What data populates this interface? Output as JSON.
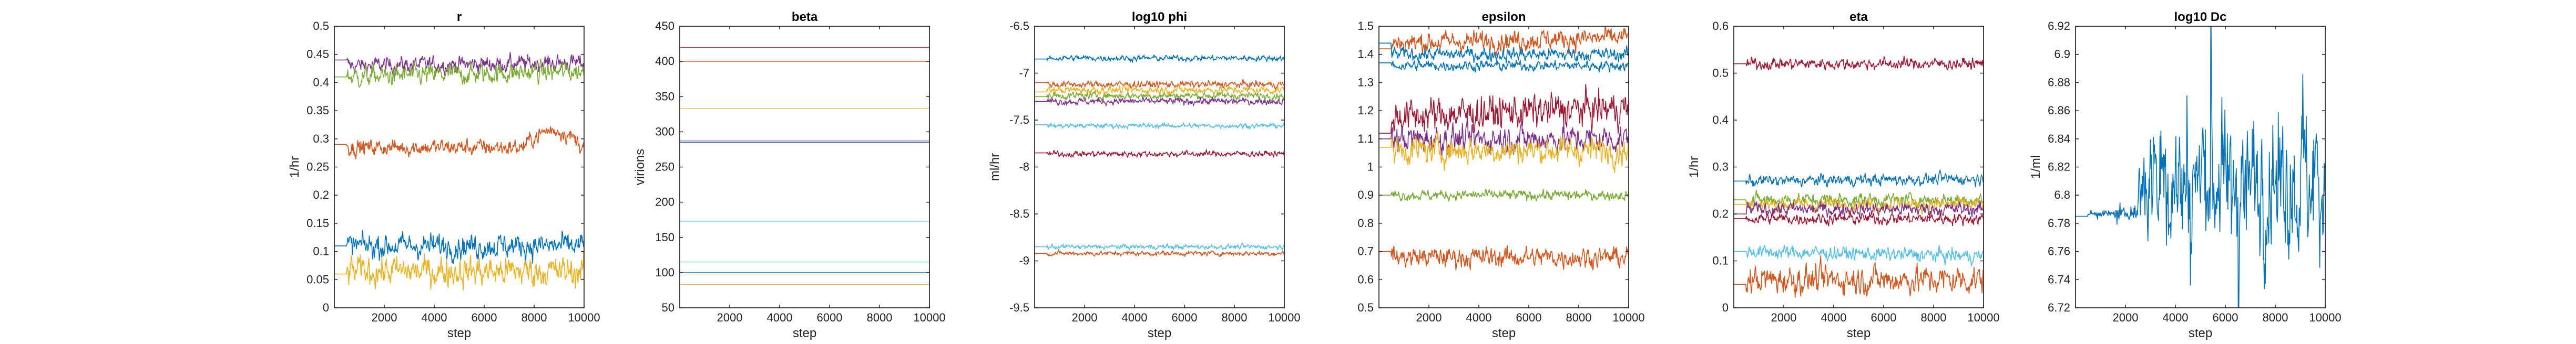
{
  "figure": {
    "background": "#ffffff"
  },
  "chart_data": [
    {
      "type": "line",
      "title": "r",
      "xlabel": "step",
      "ylabel": "1/hr",
      "xlim": [
        0,
        10000
      ],
      "ylim": [
        0,
        0.5
      ],
      "xticks": [
        2000,
        4000,
        6000,
        8000,
        10000
      ],
      "yticks": [
        0,
        0.05,
        0.1,
        0.15,
        0.2,
        0.25,
        0.3,
        0.35,
        0.4,
        0.45,
        0.5
      ],
      "ytick_labels": [
        "0",
        "0.05",
        "0.1",
        "0.15",
        "0.2",
        "0.25",
        "0.3",
        "0.35",
        "0.4",
        "0.45",
        "0.5"
      ],
      "grid": false,
      "series": [
        {
          "color": "#7E2F8E",
          "start": 0.44,
          "mean": 0.43,
          "noise": 0.012,
          "drift": 0.005
        },
        {
          "color": "#77AC30",
          "start": 0.41,
          "mean": 0.41,
          "noise": 0.015,
          "drift": 0.01
        },
        {
          "color": "#D95319",
          "start": 0.29,
          "mean": 0.285,
          "noise": 0.012,
          "drift": 0.0,
          "late_bump": 0.03
        },
        {
          "color": "#0072BD",
          "start": 0.11,
          "mean": 0.11,
          "noise": 0.018,
          "drift": 0.0
        },
        {
          "color": "#EDB120",
          "start": 0.06,
          "mean": 0.065,
          "noise": 0.022,
          "drift": 0.0
        }
      ]
    },
    {
      "type": "line",
      "title": "beta",
      "xlabel": "step",
      "ylabel": "virions",
      "xlim": [
        0,
        10000
      ],
      "ylim": [
        50,
        450
      ],
      "xticks": [
        2000,
        4000,
        6000,
        8000,
        10000
      ],
      "yticks": [
        50,
        100,
        150,
        200,
        250,
        300,
        350,
        400,
        450
      ],
      "ytick_labels": [
        "50",
        "100",
        "150",
        "200",
        "250",
        "300",
        "350",
        "400",
        "450"
      ],
      "grid": false,
      "series": [
        {
          "color": "#A2142F",
          "start": 420,
          "mean": 420,
          "noise": 0,
          "drift": 0
        },
        {
          "color": "#D95319",
          "start": 400,
          "mean": 400,
          "noise": 0,
          "drift": 0
        },
        {
          "color": "#EDB120",
          "start": 333,
          "mean": 333,
          "noise": 0,
          "drift": 0
        },
        {
          "color": "#7E2F8E",
          "start": 287,
          "mean": 287,
          "noise": 0,
          "drift": 0
        },
        {
          "color": "#0072BD",
          "start": 285,
          "mean": 285,
          "noise": 0,
          "drift": 0
        },
        {
          "color": "#4DBEEE",
          "start": 173,
          "mean": 173,
          "noise": 0,
          "drift": 0
        },
        {
          "color": "#4DBEEE",
          "start": 115,
          "mean": 115,
          "noise": 0,
          "drift": 0
        },
        {
          "color": "#0072BD",
          "start": 100,
          "mean": 100,
          "noise": 0,
          "drift": 0
        },
        {
          "color": "#EDB120",
          "start": 83,
          "mean": 83,
          "noise": 0,
          "drift": 0
        }
      ]
    },
    {
      "type": "line",
      "title": "log10 phi",
      "xlabel": "step",
      "ylabel": "ml/hr",
      "xlim": [
        0,
        10000
      ],
      "ylim": [
        -9.5,
        -6.5
      ],
      "xticks": [
        2000,
        4000,
        6000,
        8000,
        10000
      ],
      "yticks": [
        -9.5,
        -9,
        -8.5,
        -8,
        -7.5,
        -7,
        -6.5
      ],
      "ytick_labels": [
        "-9.5",
        "-9",
        "-8.5",
        "-8",
        "-7.5",
        "-7",
        "-6.5"
      ],
      "grid": false,
      "series": [
        {
          "color": "#0072BD",
          "start": -6.85,
          "mean": -6.84,
          "noise": 0.025,
          "drift": 0
        },
        {
          "color": "#D95319",
          "start": -7.1,
          "mean": -7.12,
          "noise": 0.03,
          "drift": 0
        },
        {
          "color": "#EDB120",
          "start": -7.2,
          "mean": -7.18,
          "noise": 0.035,
          "drift": 0
        },
        {
          "color": "#77AC30",
          "start": -7.25,
          "mean": -7.24,
          "noise": 0.03,
          "drift": 0
        },
        {
          "color": "#7E2F8E",
          "start": -7.3,
          "mean": -7.3,
          "noise": 0.03,
          "drift": 0
        },
        {
          "color": "#4DBEEE",
          "start": -7.55,
          "mean": -7.56,
          "noise": 0.02,
          "drift": 0
        },
        {
          "color": "#A2142F",
          "start": -7.85,
          "mean": -7.86,
          "noise": 0.025,
          "drift": 0
        },
        {
          "color": "#4DBEEE",
          "start": -8.85,
          "mean": -8.85,
          "noise": 0.02,
          "drift": 0
        },
        {
          "color": "#D95319",
          "start": -8.92,
          "mean": -8.92,
          "noise": 0.02,
          "drift": 0
        }
      ]
    },
    {
      "type": "line",
      "title": "epsilon",
      "xlabel": "step",
      "ylabel": "",
      "xlim": [
        0,
        10000
      ],
      "ylim": [
        0.5,
        1.5
      ],
      "xticks": [
        2000,
        4000,
        6000,
        8000,
        10000
      ],
      "yticks": [
        0.5,
        0.6,
        0.7,
        0.8,
        0.9,
        1.0,
        1.1,
        1.2,
        1.3,
        1.4,
        1.5
      ],
      "ytick_labels": [
        "0.5",
        "0.6",
        "0.7",
        "0.8",
        "0.9",
        "1",
        "1.1",
        "1.2",
        "1.3",
        "1.4",
        "1.5"
      ],
      "grid": false,
      "series": [
        {
          "color": "#D95319",
          "start": 1.42,
          "mean": 1.44,
          "noise": 0.03,
          "drift": 0.02
        },
        {
          "color": "#0072BD",
          "start": 1.44,
          "mean": 1.4,
          "noise": 0.02,
          "drift": 0
        },
        {
          "color": "#0072BD",
          "start": 1.37,
          "mean": 1.36,
          "noise": 0.015,
          "drift": 0
        },
        {
          "color": "#A2142F",
          "start": 1.12,
          "mean": 1.18,
          "noise": 0.05,
          "drift": 0.03
        },
        {
          "color": "#7E2F8E",
          "start": 1.1,
          "mean": 1.1,
          "noise": 0.04,
          "drift": 0
        },
        {
          "color": "#EDB120",
          "start": 1.07,
          "mean": 1.06,
          "noise": 0.04,
          "drift": 0
        },
        {
          "color": "#77AC30",
          "start": 0.9,
          "mean": 0.9,
          "noise": 0.015,
          "drift": 0
        },
        {
          "color": "#D95319",
          "start": 0.7,
          "mean": 0.68,
          "noise": 0.03,
          "drift": 0
        }
      ]
    },
    {
      "type": "line",
      "title": "eta",
      "xlabel": "step",
      "ylabel": "1/hr",
      "xlim": [
        0,
        10000
      ],
      "ylim": [
        0,
        0.6
      ],
      "xticks": [
        2000,
        4000,
        6000,
        8000,
        10000
      ],
      "yticks": [
        0,
        0.1,
        0.2,
        0.3,
        0.4,
        0.5,
        0.6
      ],
      "ytick_labels": [
        "0",
        "0.1",
        "0.2",
        "0.3",
        "0.4",
        "0.5",
        "0.6"
      ],
      "grid": false,
      "series": [
        {
          "color": "#A2142F",
          "start": 0.52,
          "mean": 0.52,
          "noise": 0.01,
          "drift": 0
        },
        {
          "color": "#0072BD",
          "start": 0.27,
          "mean": 0.27,
          "noise": 0.01,
          "drift": 0.005
        },
        {
          "color": "#77AC30",
          "start": 0.23,
          "mean": 0.23,
          "noise": 0.012,
          "drift": 0
        },
        {
          "color": "#EDB120",
          "start": 0.22,
          "mean": 0.22,
          "noise": 0.012,
          "drift": 0
        },
        {
          "color": "#7E2F8E",
          "start": 0.2,
          "mean": 0.21,
          "noise": 0.012,
          "drift": 0
        },
        {
          "color": "#A2142F",
          "start": 0.19,
          "mean": 0.19,
          "noise": 0.01,
          "drift": 0
        },
        {
          "color": "#4DBEEE",
          "start": 0.12,
          "mean": 0.12,
          "noise": 0.012,
          "drift": -0.01
        },
        {
          "color": "#D95319",
          "start": 0.05,
          "mean": 0.06,
          "noise": 0.025,
          "drift": 0
        }
      ]
    },
    {
      "type": "line",
      "title": "log10 Dc",
      "xlabel": "step",
      "ylabel": "1/ml",
      "xlim": [
        0,
        10000
      ],
      "ylim": [
        6.72,
        6.92
      ],
      "xticks": [
        2000,
        4000,
        6000,
        8000,
        10000
      ],
      "yticks": [
        6.72,
        6.74,
        6.76,
        6.78,
        6.8,
        6.82,
        6.84,
        6.86,
        6.88,
        6.9,
        6.92
      ],
      "ytick_labels": [
        "6.72",
        "6.74",
        "6.76",
        "6.78",
        "6.8",
        "6.82",
        "6.84",
        "6.86",
        "6.88",
        "6.9",
        "6.92"
      ],
      "grid": false,
      "series": [
        {
          "color": "#0072BD",
          "start": 6.785,
          "mean": 6.81,
          "noise": 0.02,
          "drift": 0,
          "spiky": true
        }
      ]
    }
  ]
}
